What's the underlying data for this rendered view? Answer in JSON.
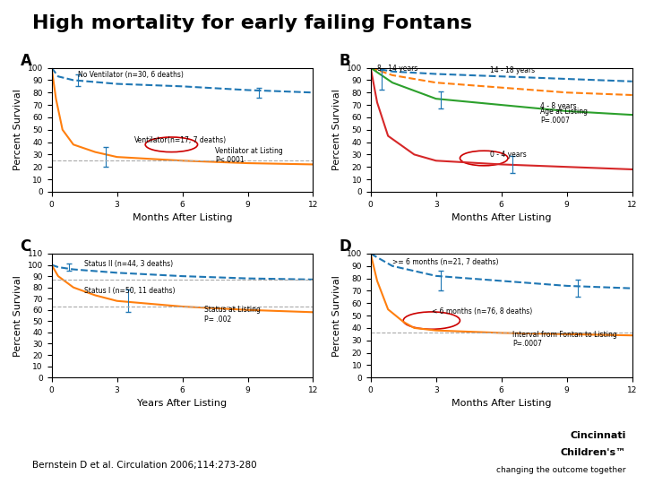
{
  "title": "High mortality for early failing Fontans",
  "annotations": [
    "Bernstein D et al. Circulation 2006;114:273-280",
    "Cincinnati",
    "Children's™",
    "changing the outcome together"
  ],
  "chart_data": [
    {
      "type": "line",
      "title": "A",
      "xlabel": "Months After Listing",
      "ylabel": "Percent Survival",
      "xlim": [
        0,
        12
      ],
      "ylim": [
        0,
        100
      ],
      "xticks": [
        0,
        3,
        6,
        9,
        12
      ],
      "yticks": [
        0,
        10,
        20,
        30,
        40,
        50,
        60,
        70,
        80,
        90,
        100
      ],
      "series": [
        {
          "x": [
            0,
            0.3,
            1,
            3,
            6,
            9,
            12
          ],
          "values": [
            100,
            93,
            90,
            87,
            85,
            82,
            80
          ],
          "line_style": "dashed"
        },
        {
          "x": [
            0,
            0.2,
            0.5,
            1,
            2,
            3,
            6,
            9,
            12
          ],
          "values": [
            100,
            75,
            50,
            38,
            32,
            28,
            25,
            23,
            22
          ],
          "line_style": "solid"
        }
      ],
      "error_bars": [
        {
          "x": [
            1.2
          ],
          "y": [
            90
          ],
          "yerr": 5
        },
        {
          "x": [
            9.5
          ],
          "y": [
            80
          ],
          "yerr": 4
        },
        {
          "x": [
            2.5
          ],
          "y": [
            28
          ],
          "yerr": 8
        }
      ],
      "hlines": [
        {
          "y": 25,
          "color": "#aaaaaa",
          "line_style": "dashed"
        }
      ],
      "ellipses": [
        {
          "x": 5.5,
          "y": 38,
          "width": 2.4,
          "height": 12,
          "color": "#cc0000"
        }
      ],
      "annotations": [
        {
          "text": "No Ventilator (n=30, 6 deaths)",
          "x": 1.2,
          "y": 91
        },
        {
          "text": "Ventilator",
          "x": 3.8,
          "y": 38
        },
        {
          "text": "(n=17, 7 deaths)",
          "x": 5.3,
          "y": 38
        },
        {
          "text": "Ventilator at Listing\nP<.0001",
          "x": 7.5,
          "y": 22
        }
      ]
    },
    {
      "type": "line",
      "title": "B",
      "xlabel": "Months After Listing",
      "ylabel": "Percent Survival",
      "xlim": [
        0,
        12
      ],
      "ylim": [
        0,
        100
      ],
      "xticks": [
        0,
        3,
        6,
        9,
        12
      ],
      "yticks": [
        0,
        10,
        20,
        30,
        40,
        50,
        60,
        70,
        80,
        90,
        100
      ],
      "series": [
        {
          "x": [
            0,
            1,
            3,
            6,
            9,
            12
          ],
          "values": [
            100,
            97,
            95,
            93,
            91,
            89
          ],
          "line_style": "dashed"
        },
        {
          "x": [
            0,
            1,
            3,
            6,
            9,
            12
          ],
          "values": [
            100,
            94,
            88,
            84,
            80,
            78
          ],
          "line_style": "dashed"
        },
        {
          "x": [
            0,
            1,
            3,
            6,
            9,
            12
          ],
          "values": [
            100,
            88,
            75,
            70,
            65,
            62
          ],
          "line_style": "solid"
        },
        {
          "x": [
            0,
            0.3,
            0.8,
            2,
            3,
            6,
            9,
            12
          ],
          "values": [
            100,
            72,
            45,
            30,
            25,
            22,
            20,
            18
          ],
          "line_style": "solid"
        }
      ],
      "error_bars": [
        {
          "x": [
            0.5
          ],
          "y": [
            90
          ],
          "yerr": 8
        },
        {
          "x": [
            3.2
          ],
          "y": [
            74
          ],
          "yerr": 7
        },
        {
          "x": [
            6.5
          ],
          "y": [
            22
          ],
          "yerr": 7
        }
      ],
      "hlines": [],
      "ellipses": [
        {
          "x": 5.2,
          "y": 27,
          "width": 2.2,
          "height": 12,
          "color": "#cc0000"
        }
      ],
      "annotations": [
        {
          "text": "8 - 14 years",
          "x": 0.3,
          "y": 96
        },
        {
          "text": "14 - 18 years",
          "x": 5.5,
          "y": 95
        },
        {
          "text": "4 - 8 years",
          "x": 7.8,
          "y": 66
        },
        {
          "text": "Age at Listing\nP=.0007",
          "x": 7.8,
          "y": 54
        },
        {
          "text": "0 - 4 years",
          "x": 5.5,
          "y": 27
        }
      ]
    },
    {
      "type": "line",
      "title": "C",
      "xlabel": "Years After Listing",
      "ylabel": "Percent Survival",
      "xlim": [
        0,
        12
      ],
      "ylim": [
        0,
        110
      ],
      "xticks": [
        0,
        3,
        6,
        9,
        12
      ],
      "yticks": [
        0,
        10,
        20,
        30,
        40,
        50,
        60,
        70,
        80,
        90,
        100,
        110
      ],
      "series": [
        {
          "x": [
            0,
            0.3,
            1,
            3,
            6,
            9,
            12
          ],
          "values": [
            100,
            98,
            96,
            93,
            90,
            88,
            87
          ],
          "line_style": "dashed"
        },
        {
          "x": [
            0,
            0.3,
            1,
            2,
            3,
            6,
            9,
            12
          ],
          "values": [
            100,
            90,
            80,
            73,
            68,
            63,
            60,
            58
          ],
          "line_style": "solid"
        }
      ],
      "error_bars": [
        {
          "x": [
            0.8
          ],
          "y": [
            98
          ],
          "yerr": 3
        },
        {
          "x": [
            3.5
          ],
          "y": [
            68
          ],
          "yerr": 10
        }
      ],
      "hlines": [
        {
          "y": 87,
          "color": "#aaaaaa",
          "line_style": "dashed"
        },
        {
          "y": 63,
          "color": "#aaaaaa",
          "line_style": "dashed"
        }
      ],
      "ellipses": [],
      "annotations": [
        {
          "text": "Status II (n=44, 3 deaths)",
          "x": 1.5,
          "y": 97
        },
        {
          "text": "Status I (n=50, 11 deaths)",
          "x": 1.5,
          "y": 73
        },
        {
          "text": "Status at Listing\nP= .002",
          "x": 7.0,
          "y": 48
        }
      ]
    },
    {
      "type": "line",
      "title": "D",
      "xlabel": "Months After Listing",
      "ylabel": "Percent Survival",
      "xlim": [
        0,
        12
      ],
      "ylim": [
        0,
        100
      ],
      "xticks": [
        0,
        3,
        6,
        9,
        12
      ],
      "yticks": [
        0,
        10,
        20,
        30,
        40,
        50,
        60,
        70,
        80,
        90,
        100
      ],
      "series": [
        {
          "x": [
            0,
            1,
            3,
            6,
            9,
            12
          ],
          "values": [
            100,
            90,
            82,
            78,
            74,
            72
          ],
          "line_style": "dashed"
        },
        {
          "x": [
            0,
            0.3,
            0.8,
            1.5,
            2,
            3,
            6,
            9,
            12
          ],
          "values": [
            100,
            78,
            55,
            45,
            40,
            38,
            36,
            35,
            34
          ],
          "line_style": "solid"
        }
      ],
      "error_bars": [
        {
          "x": [
            3.2
          ],
          "y": [
            78
          ],
          "yerr": 8
        },
        {
          "x": [
            9.5
          ],
          "y": [
            72
          ],
          "yerr": 7
        }
      ],
      "hlines": [
        {
          "y": 36,
          "color": "#aaaaaa",
          "line_style": "dashed"
        }
      ],
      "ellipses": [
        {
          "x": 2.8,
          "y": 46,
          "width": 2.6,
          "height": 14,
          "color": "#cc0000"
        }
      ],
      "annotations": [
        {
          "text": ">= 6 months (n=21, 7 deaths)",
          "x": 1.0,
          "y": 90
        },
        {
          "text": "< 6 months (n=76, 8 deaths)",
          "x": 2.8,
          "y": 50
        },
        {
          "text": "Interval from Fontan to Listing\nP=.0007",
          "x": 6.5,
          "y": 24
        }
      ]
    }
  ]
}
